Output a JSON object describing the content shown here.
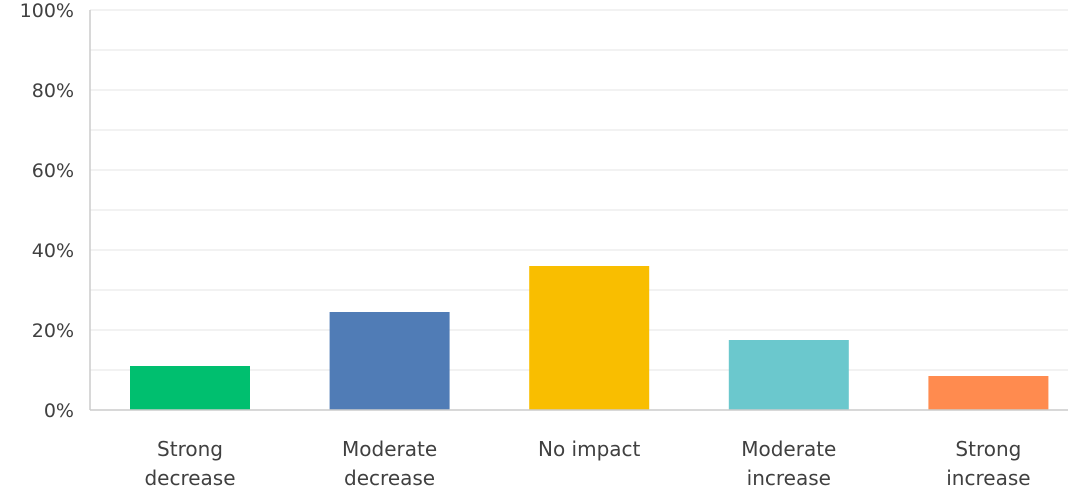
{
  "chart_data": {
    "type": "bar",
    "categories": [
      [
        "Strong",
        "decrease"
      ],
      [
        "Moderate",
        "decrease"
      ],
      [
        "No impact"
      ],
      [
        "Moderate",
        "increase"
      ],
      [
        "Strong",
        "increase"
      ]
    ],
    "values": [
      11,
      24.5,
      36,
      17.5,
      8.5
    ],
    "bar_colors": [
      "#00bf6f",
      "#507cb6",
      "#f9be00",
      "#6bc8cd",
      "#ff8b4f"
    ],
    "y_ticks": [
      "0%",
      "20%",
      "40%",
      "60%",
      "80%",
      "100%"
    ],
    "ylim": [
      0,
      100
    ],
    "y_unit": "%",
    "grid": true,
    "gridline_color": "#e5e5e5",
    "axis_color": "#cccccc",
    "title": "",
    "xlabel": "",
    "ylabel": ""
  }
}
